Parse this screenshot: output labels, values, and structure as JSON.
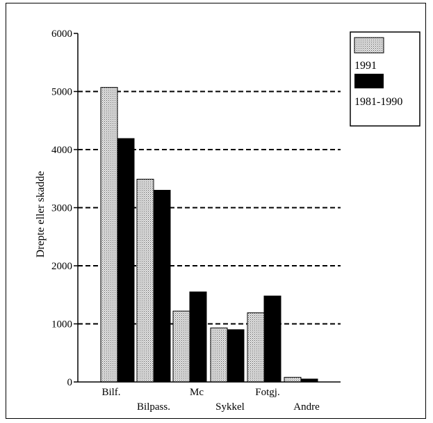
{
  "chart_data": {
    "type": "bar",
    "ylabel": "Drepte eller skadde",
    "ylim": [
      0,
      6000
    ],
    "yticks": [
      0,
      1000,
      2000,
      3000,
      4000,
      5000,
      6000
    ],
    "grid": "horizontal dashed",
    "legend_position": "top-right",
    "categories": [
      "Bilf.",
      "Bilpass.",
      "Mc",
      "Sykkel",
      "Fotgj.",
      "Andre"
    ],
    "series": [
      {
        "name": "1991",
        "values": [
          5070,
          3490,
          1220,
          930,
          1190,
          80
        ],
        "fill": "dotted-gray"
      },
      {
        "name": "1981-1990",
        "values": [
          4190,
          3300,
          1550,
          900,
          1480,
          50
        ],
        "fill": "#000000"
      }
    ]
  },
  "colors": {
    "dark_bar": "#000000",
    "light_bar": "#dcdcdc",
    "grid": "#000000"
  }
}
